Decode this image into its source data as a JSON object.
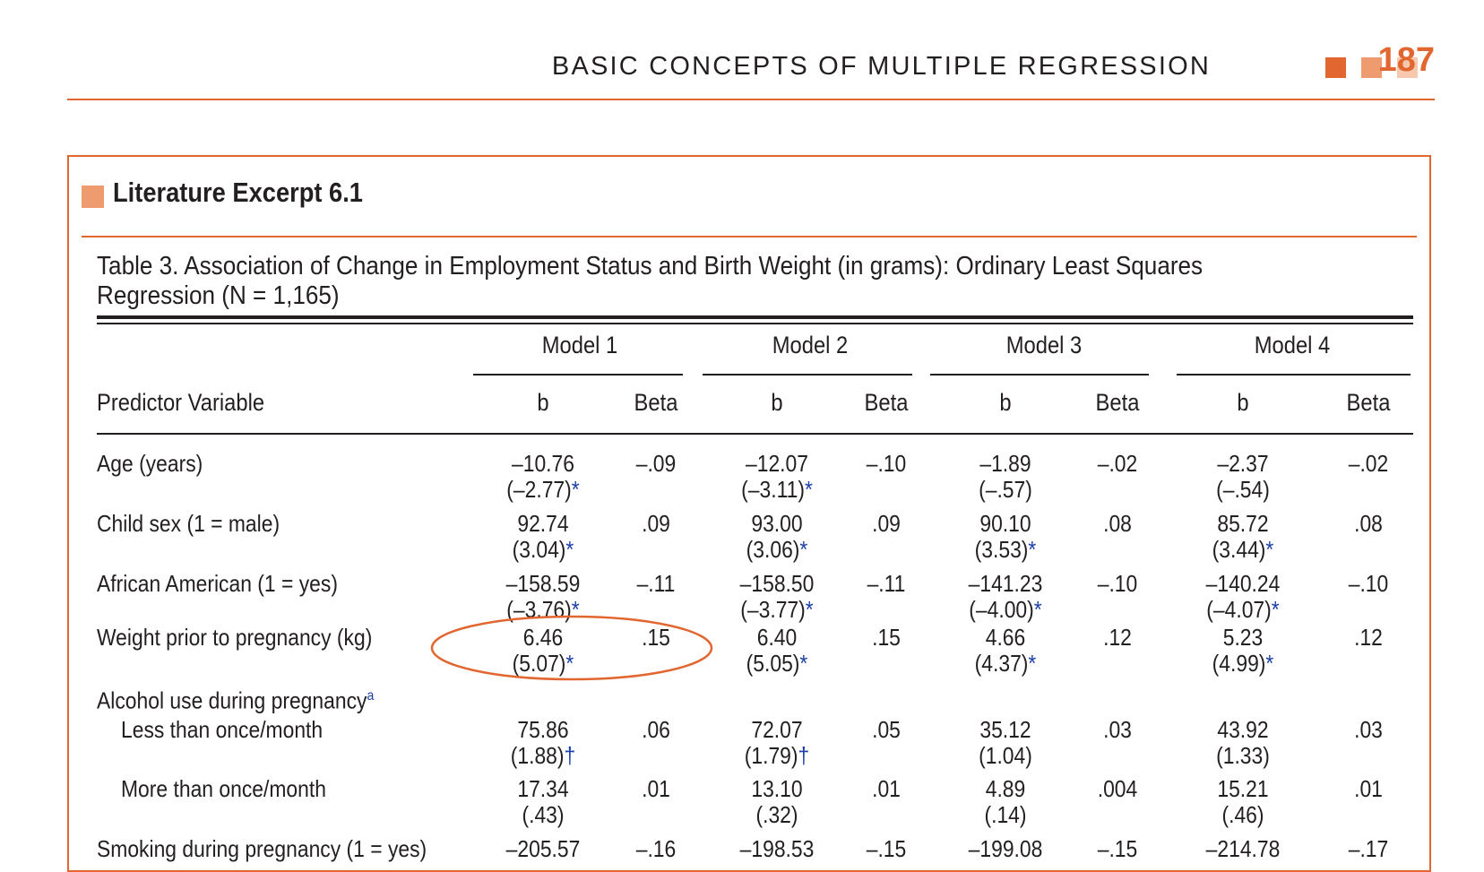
{
  "header": {
    "running_title": "BASIC CONCEPTS OF MULTIPLE REGRESSION",
    "page_number": "187"
  },
  "colors": {
    "accent": "#e2662f",
    "square_1": "#e2662f",
    "square_2": "#ee9b6f",
    "square_3": "#f6c8ad",
    "heading_square": "#ee9b6f",
    "significance_marker": "#1b3fa8"
  },
  "excerpt": {
    "title": "Literature Excerpt 6.1"
  },
  "table": {
    "caption_line1": "Table 3.  Association of Change in Employment Status and Birth Weight (in grams): Ordinary Least Squares",
    "caption_line2": "Regression (N = 1,165)",
    "predictor_header": "Predictor Variable",
    "models": [
      "Model 1",
      "Model 2",
      "Model 3",
      "Model 4"
    ],
    "sub_b": "b",
    "sub_beta": "Beta",
    "rows": [
      {
        "label": "Age (years)",
        "cells": [
          {
            "b": "–10.76",
            "se": "(–2.77)",
            "mark": "*",
            "beta": "–.09"
          },
          {
            "b": "–12.07",
            "se": "(–3.11)",
            "mark": "*",
            "beta": "–.10"
          },
          {
            "b": "–1.89",
            "se": "(–.57)",
            "mark": "",
            "beta": "–.02"
          },
          {
            "b": "–2.37",
            "se": "(–.54)",
            "mark": "",
            "beta": "–.02"
          }
        ]
      },
      {
        "label": "Child sex (1 = male)",
        "cells": [
          {
            "b": "92.74",
            "se": "(3.04)",
            "mark": "*",
            "beta": ".09"
          },
          {
            "b": "93.00",
            "se": "(3.06)",
            "mark": "*",
            "beta": ".09"
          },
          {
            "b": "90.10",
            "se": "(3.53)",
            "mark": "*",
            "beta": ".08"
          },
          {
            "b": "85.72",
            "se": "(3.44)",
            "mark": "*",
            "beta": ".08"
          }
        ]
      },
      {
        "label": "African American (1 = yes)",
        "cells": [
          {
            "b": "–158.59",
            "se": "(–3.76)",
            "mark": "*",
            "beta": "–.11"
          },
          {
            "b": "–158.50",
            "se": "(–3.77)",
            "mark": "*",
            "beta": "–.11"
          },
          {
            "b": "–141.23",
            "se": "(–4.00)",
            "mark": "*",
            "beta": "–.10"
          },
          {
            "b": "–140.24",
            "se": "(–4.07)",
            "mark": "*",
            "beta": "–.10"
          }
        ]
      },
      {
        "label": "Weight prior to pregnancy (kg)",
        "cells": [
          {
            "b": "6.46",
            "se": "(5.07)",
            "mark": "*",
            "beta": ".15"
          },
          {
            "b": "6.40",
            "se": "(5.05)",
            "mark": "*",
            "beta": ".15"
          },
          {
            "b": "4.66",
            "se": "(4.37)",
            "mark": "*",
            "beta": ".12"
          },
          {
            "b": "5.23",
            "se": "(4.99)",
            "mark": "*",
            "beta": ".12"
          }
        ]
      },
      {
        "label": "Alcohol use during pregnancy",
        "label_superscript": "a",
        "cells": []
      },
      {
        "label": "Less than once/month",
        "indent": true,
        "cells": [
          {
            "b": "75.86",
            "se": "(1.88)",
            "mark": "†",
            "beta": ".06"
          },
          {
            "b": "72.07",
            "se": "(1.79)",
            "mark": "†",
            "beta": ".05"
          },
          {
            "b": "35.12",
            "se": "(1.04)",
            "mark": "",
            "beta": ".03"
          },
          {
            "b": "43.92",
            "se": "(1.33)",
            "mark": "",
            "beta": ".03"
          }
        ]
      },
      {
        "label": "More than once/month",
        "indent": true,
        "cells": [
          {
            "b": "17.34",
            "se": "(.43)",
            "mark": "",
            "beta": ".01"
          },
          {
            "b": "13.10",
            "se": "(.32)",
            "mark": "",
            "beta": ".01"
          },
          {
            "b": "4.89",
            "se": "(.14)",
            "mark": "",
            "beta": ".004"
          },
          {
            "b": "15.21",
            "se": "(.46)",
            "mark": "",
            "beta": ".01"
          }
        ]
      },
      {
        "label": "Smoking during pregnancy (1 = yes)",
        "cells": [
          {
            "b": "–205.57",
            "se": "",
            "mark": "",
            "beta": "–.16"
          },
          {
            "b": "–198.53",
            "se": "",
            "mark": "",
            "beta": "–.15"
          },
          {
            "b": "–199.08",
            "se": "",
            "mark": "",
            "beta": "–.15"
          },
          {
            "b": "–214.78",
            "se": "",
            "mark": "",
            "beta": "–.17"
          }
        ]
      }
    ]
  }
}
